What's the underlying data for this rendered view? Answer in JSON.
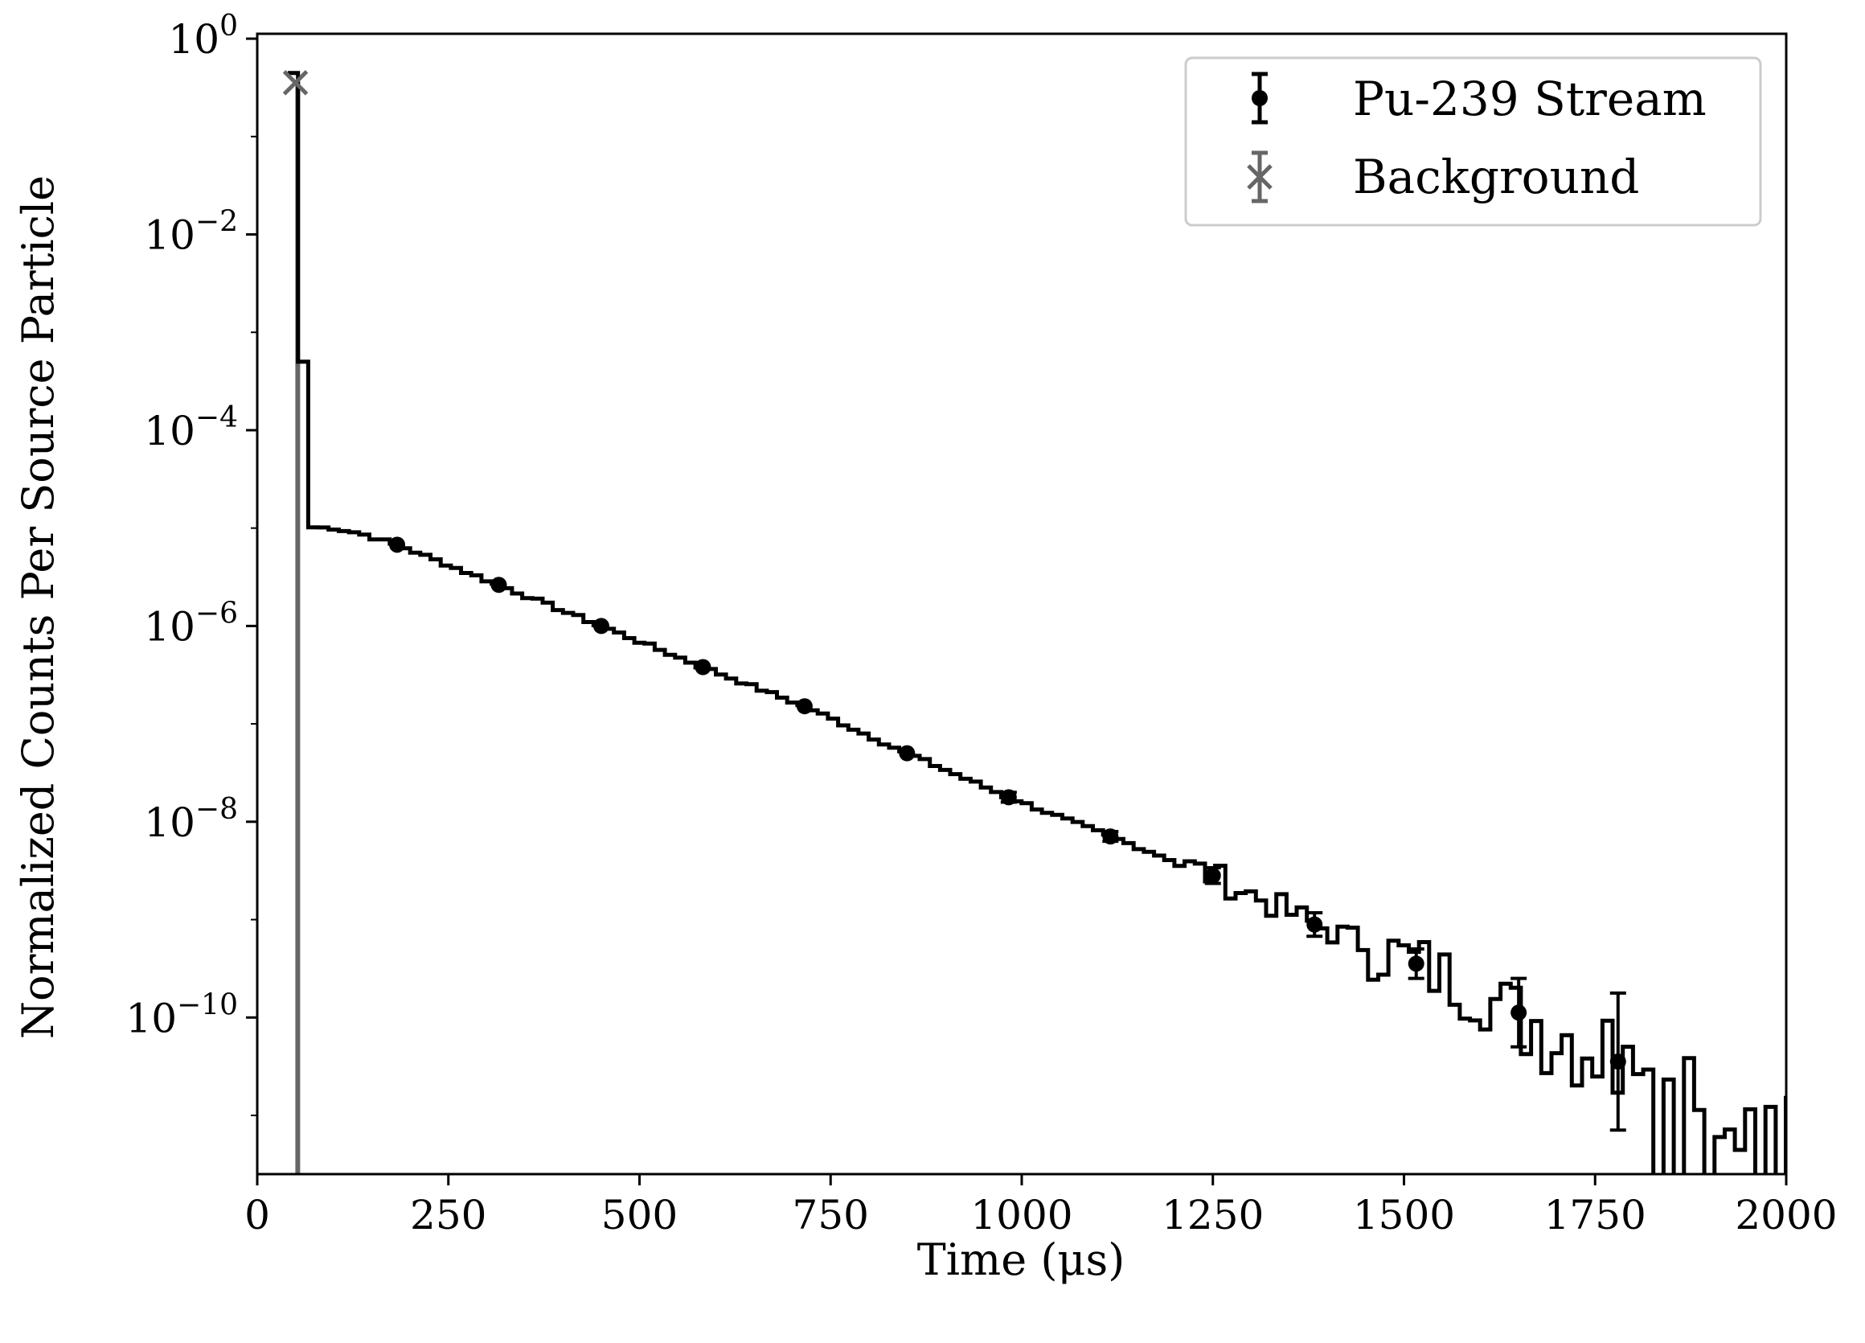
{
  "chart_data": {
    "type": "line",
    "xlabel": "Time (μs)",
    "ylabel": "Normalized Counts Per Source Particle",
    "xlim": [
      0,
      2000
    ],
    "ylim_log10": [
      -11.6,
      0.05
    ],
    "yscale": "log",
    "grid": false,
    "legend_placement": "top-right",
    "x_ticks": [
      {
        "value": 0,
        "label": "0"
      },
      {
        "value": 250,
        "label": "250"
      },
      {
        "value": 500,
        "label": "500"
      },
      {
        "value": 750,
        "label": "750"
      },
      {
        "value": 1000,
        "label": "1000"
      },
      {
        "value": 1250,
        "label": "1250"
      },
      {
        "value": 1500,
        "label": "1500"
      },
      {
        "value": 1750,
        "label": "1750"
      },
      {
        "value": 2000,
        "label": "2000"
      }
    ],
    "y_ticks": [
      {
        "exp": 0,
        "base": "10",
        "label": "0"
      },
      {
        "exp": -2,
        "base": "10",
        "label": "−2"
      },
      {
        "exp": -4,
        "base": "10",
        "label": "−4"
      },
      {
        "exp": -6,
        "base": "10",
        "label": "−6"
      },
      {
        "exp": -8,
        "base": "10",
        "label": "−8"
      },
      {
        "exp": -10,
        "base": "10",
        "label": "−10"
      }
    ],
    "colors": {
      "stream": "#000000",
      "background": "#666666"
    },
    "series": [
      {
        "name": "Pu-239 Stream",
        "style": "step-histogram",
        "bin_width": 13.33,
        "start": 40,
        "anchors": [
          [
            40,
            -0.35
          ],
          [
            53.3,
            -3.3
          ],
          [
            66.7,
            -4.99
          ],
          [
            100,
            -5.0
          ],
          [
            133,
            -5.05
          ],
          [
            183,
            -5.17
          ],
          [
            316,
            -5.58
          ],
          [
            450,
            -6.0
          ],
          [
            583,
            -6.42
          ],
          [
            716,
            -6.82
          ],
          [
            850,
            -7.3
          ],
          [
            983,
            -7.75
          ],
          [
            1116,
            -8.15
          ],
          [
            1250,
            -8.55
          ],
          [
            1383,
            -9.05
          ],
          [
            1516,
            -9.45
          ],
          [
            1650,
            -9.95
          ],
          [
            1780,
            -10.4
          ],
          [
            2000,
            -11.0
          ]
        ],
        "markers": [
          {
            "x": 183,
            "log10y": -5.17,
            "err": 0.0
          },
          {
            "x": 316,
            "log10y": -5.58,
            "err": 0.0
          },
          {
            "x": 450,
            "log10y": -6.0,
            "err": 0.0
          },
          {
            "x": 583,
            "log10y": -6.42,
            "err": 0.0
          },
          {
            "x": 716,
            "log10y": -6.82,
            "err": 0.0
          },
          {
            "x": 850,
            "log10y": -7.3,
            "err": 0.0
          },
          {
            "x": 983,
            "log10y": -7.75,
            "err": 0.05
          },
          {
            "x": 1116,
            "log10y": -8.15,
            "err": 0.05
          },
          {
            "x": 1250,
            "log10y": -8.55,
            "err": 0.08
          },
          {
            "x": 1383,
            "log10y": -9.05,
            "err": 0.12
          },
          {
            "x": 1516,
            "log10y": -9.45,
            "err": 0.15
          },
          {
            "x": 1650,
            "log10y": -9.95,
            "err": 0.35
          },
          {
            "x": 1780,
            "log10y": -10.45,
            "err": 0.7
          }
        ]
      },
      {
        "name": "Background",
        "style": "spike",
        "x": 50,
        "log10y": -0.45,
        "line_x": 53
      }
    ]
  }
}
